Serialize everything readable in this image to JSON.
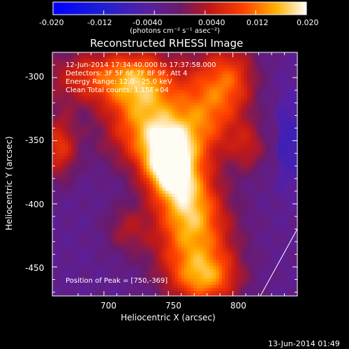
{
  "colorbar": {
    "ticks": [
      "-0.020",
      "-0.012",
      "-0.0040",
      "0.0040",
      "0.012",
      "0.020"
    ],
    "units": "(photons cm⁻² s⁻¹ asec⁻²)"
  },
  "title": "Reconstructed RHESSI Image",
  "info_lines": [
    "12-Jun-2014 17:34:40.000 to 17:37:58.000",
    "Detectors: 3F 5F 6F 7F 8F 9F, Att 4",
    "Energy Range: 12.0 - 25.0 keV",
    "Clean    Total counts: 1.15E+04"
  ],
  "peak_text": "Position of Peak = [750,-369]",
  "chart_data": {
    "type": "heatmap",
    "title": "Reconstructed RHESSI Image",
    "xlabel": "Heliocentric X (arcsec)",
    "ylabel": "Heliocentric Y (arcsec)",
    "xlim": [
      660,
      850
    ],
    "ylim": [
      -473,
      -280
    ],
    "x_ticks": [
      700,
      750,
      800
    ],
    "y_ticks": [
      -300,
      -350,
      -400,
      -450
    ],
    "colorbar_range": [
      -0.02,
      0.02
    ],
    "peak": {
      "x": 750,
      "y": -369,
      "value": 0.02
    },
    "sources": [
      {
        "x": 750,
        "y": -369,
        "amp": 1.0,
        "sx": 14,
        "sy": 18
      },
      {
        "x": 742,
        "y": -345,
        "amp": 0.7,
        "sx": 28,
        "sy": 20
      },
      {
        "x": 770,
        "y": -430,
        "amp": 0.75,
        "sx": 22,
        "sy": 28
      },
      {
        "x": 780,
        "y": -460,
        "amp": 0.55,
        "sx": 18,
        "sy": 14
      },
      {
        "x": 700,
        "y": -300,
        "amp": 0.6,
        "sx": 32,
        "sy": 16
      },
      {
        "x": 730,
        "y": -310,
        "amp": 0.55,
        "sx": 18,
        "sy": 22
      },
      {
        "x": 780,
        "y": -320,
        "amp": 0.55,
        "sx": 18,
        "sy": 28
      },
      {
        "x": 800,
        "y": -300,
        "amp": 0.45,
        "sx": 14,
        "sy": 20
      },
      {
        "x": 665,
        "y": -355,
        "amp": 0.55,
        "sx": 10,
        "sy": 18
      },
      {
        "x": 765,
        "y": -395,
        "amp": 0.55,
        "sx": 16,
        "sy": 20
      },
      {
        "x": 812,
        "y": -355,
        "amp": 0.35,
        "sx": 10,
        "sy": 14
      },
      {
        "x": 718,
        "y": -420,
        "amp": 0.3,
        "sx": 12,
        "sy": 14
      }
    ]
  },
  "timestamp": "13-Jun-2014 01:49"
}
